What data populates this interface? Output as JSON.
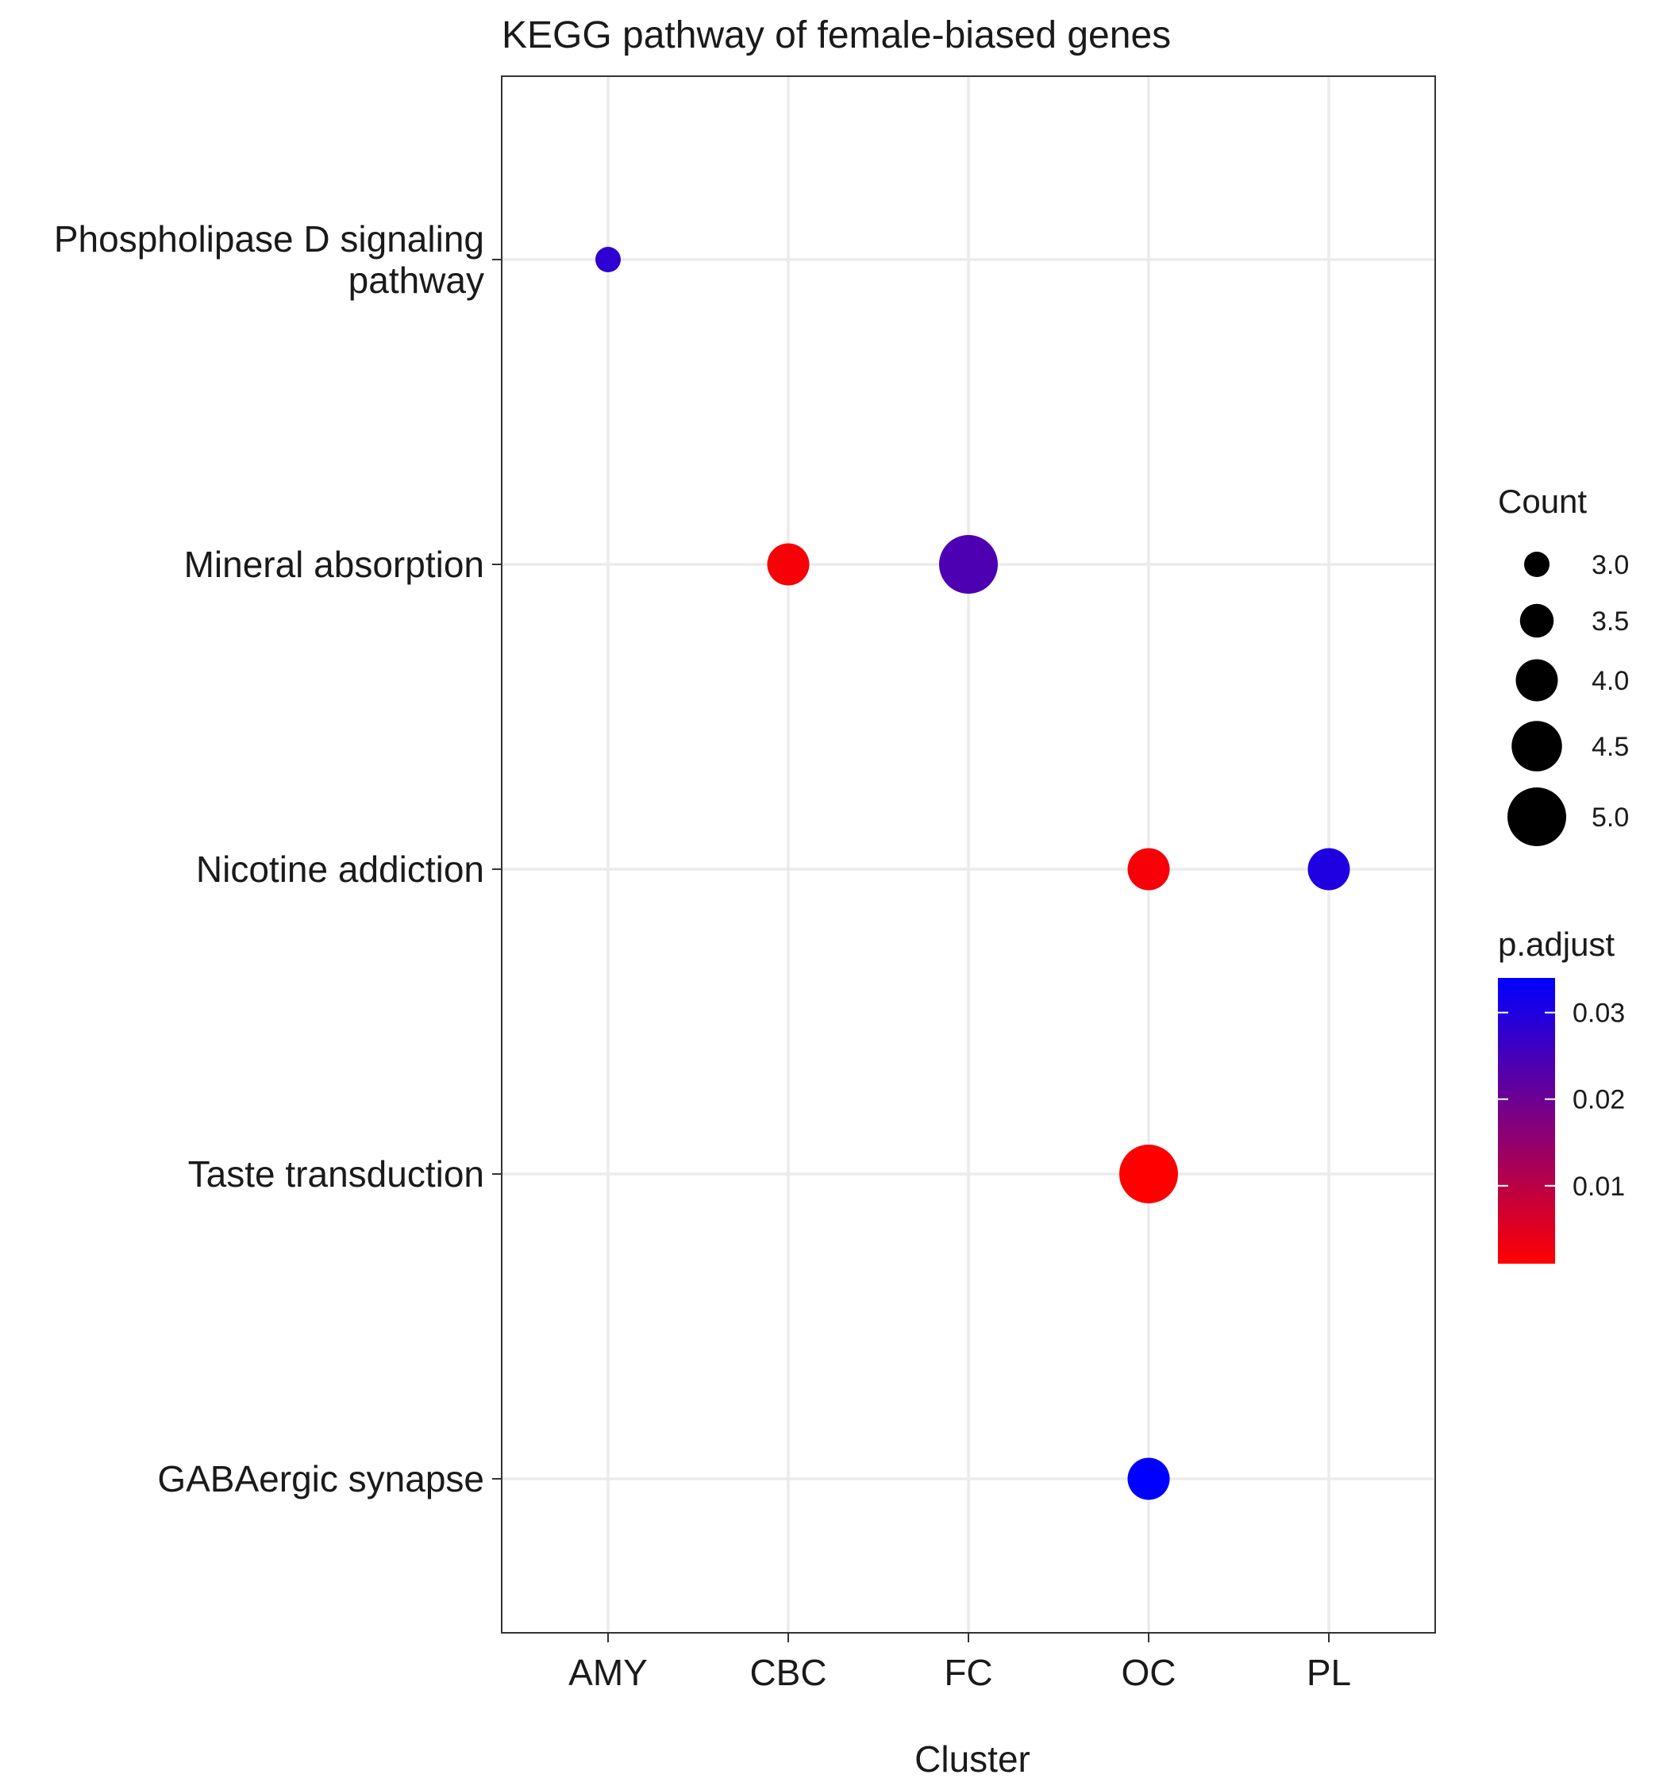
{
  "chart_data": {
    "type": "scatter",
    "title": "KEGG pathway of female-biased genes",
    "xlabel": "Cluster",
    "ylabel": "",
    "categories_x": [
      "AMY",
      "CBC",
      "FC",
      "OC",
      "PL"
    ],
    "categories_y": [
      "Phospholipase D signaling pathway",
      "Mineral absorption",
      "Nicotine addiction",
      "Taste transduction",
      "GABAergic synapse"
    ],
    "y_tick_lines": [
      [
        "Phospholipase D signaling",
        "pathway"
      ],
      [
        "Mineral absorption"
      ],
      [
        "Nicotine addiction"
      ],
      [
        "Taste transduction"
      ],
      [
        "GABAergic synapse"
      ]
    ],
    "points": [
      {
        "x": "AMY",
        "y": "Phospholipase D signaling pathway",
        "count": 3,
        "p_adjust": 0.028
      },
      {
        "x": "CBC",
        "y": "Mineral absorption",
        "count": 4,
        "p_adjust": 0.002
      },
      {
        "x": "FC",
        "y": "Mineral absorption",
        "count": 5,
        "p_adjust": 0.024
      },
      {
        "x": "OC",
        "y": "Nicotine addiction",
        "count": 4,
        "p_adjust": 0.002
      },
      {
        "x": "PL",
        "y": "Nicotine addiction",
        "count": 4,
        "p_adjust": 0.03
      },
      {
        "x": "OC",
        "y": "Taste transduction",
        "count": 5,
        "p_adjust": 0.001
      },
      {
        "x": "OC",
        "y": "GABAergic synapse",
        "count": 4,
        "p_adjust": 0.034
      }
    ],
    "size_legend": {
      "title": "Count",
      "values": [
        3.0,
        3.5,
        4.0,
        4.5,
        5.0
      ],
      "labels": [
        "3.0",
        "3.5",
        "4.0",
        "4.5",
        "5.0"
      ]
    },
    "color_legend": {
      "title": "p.adjust",
      "range": [
        0.001,
        0.034
      ],
      "low_color": "#ff0000",
      "high_color": "#0000ff",
      "ticks": [
        0.01,
        0.02,
        0.03
      ],
      "tick_labels": [
        "0.01",
        "0.02",
        "0.03"
      ]
    },
    "grid": true,
    "legend_position": "right"
  }
}
